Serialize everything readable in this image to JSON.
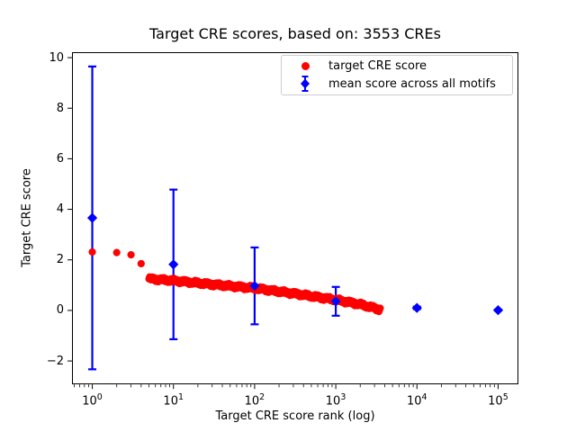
{
  "chart_data": {
    "type": "scatter",
    "title": "Target CRE scores, based on: 3553 CREs",
    "xlabel": "Target CRE score rank (log)",
    "ylabel": "Target CRE score",
    "xscale": "log",
    "yscale": "linear",
    "n_cres": 3553,
    "xlim_log10": [
      -0.25,
      5.25
    ],
    "ylim": [
      -2.93,
      10.23
    ],
    "x_tick_base": "10",
    "x_tick_exponents": [
      0,
      1,
      2,
      3,
      4,
      5
    ],
    "y_tick_labels": [
      "−2",
      "0",
      "2",
      "4",
      "6",
      "8",
      "10"
    ],
    "y_tick_values": [
      -2,
      0,
      2,
      4,
      6,
      8,
      10
    ],
    "grid": false,
    "legend_position": "upper center-right",
    "colors": {
      "target": "#ff0000",
      "mean": "#0000ff",
      "frame": "#000000",
      "legend_border": "#cccccc"
    },
    "series": [
      {
        "name": "target CRE score",
        "marker": "circle",
        "color": "#ff0000",
        "head_points": [
          [
            1,
            2.31
          ],
          [
            2,
            2.29
          ],
          [
            3,
            2.2
          ],
          [
            4,
            1.85
          ]
        ],
        "band": {
          "log10_start": 0.699,
          "log10_end": 3.5506,
          "curve": [
            [
              0.699,
              1.25
            ],
            [
              1.0,
              1.18
            ],
            [
              1.5,
              1.02
            ],
            [
              2.0,
              0.88
            ],
            [
              2.5,
              0.66
            ],
            [
              3.0,
              0.42
            ],
            [
              3.3,
              0.24
            ],
            [
              3.5506,
              0.03
            ]
          ],
          "jitter": 0.065
        }
      },
      {
        "name": "mean score across all motifs",
        "marker": "diamond",
        "color": "#0000ff",
        "points": [
          {
            "x": 1,
            "mean": 3.66,
            "err": 5.99
          },
          {
            "x": 10,
            "mean": 1.82,
            "err": 2.96
          },
          {
            "x": 100,
            "mean": 0.97,
            "err": 1.52
          },
          {
            "x": 1000,
            "mean": 0.36,
            "err": 0.57
          },
          {
            "x": 10000,
            "mean": 0.1,
            "err": 0.05
          },
          {
            "x": 100000,
            "mean": 0.01,
            "err": 0.02
          }
        ]
      }
    ]
  }
}
